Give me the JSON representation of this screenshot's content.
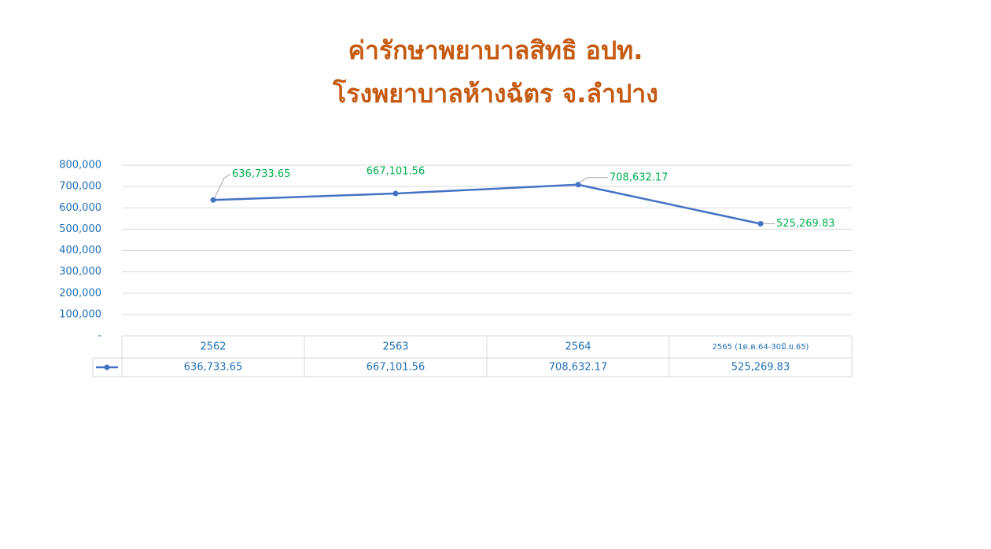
{
  "chart_data": {
    "type": "line",
    "title": [
      "ค่ารักษาพยาบาลสิทธิ อปท.",
      "โรงพยาบาลห้างฉัตร จ.ลำปาง"
    ],
    "categories": [
      "2562",
      "2563",
      "2564",
      "2565 (1ต.ค.64-30มิ.ย.65)"
    ],
    "series": [
      {
        "color": "#4472c4",
        "values": [
          636733.65,
          667101.56,
          708632.17,
          525269.83
        ],
        "value_labels": [
          "636,733.65",
          "667,101.56",
          "708,632.17",
          "525,269.83"
        ]
      }
    ],
    "ylim": [
      0,
      800000
    ],
    "yticks": [
      {
        "value": 0,
        "label": "-"
      },
      {
        "value": 100000,
        "label": "100,000"
      },
      {
        "value": 200000,
        "label": "200,000"
      },
      {
        "value": 300000,
        "label": "300,000"
      },
      {
        "value": 400000,
        "label": "400,000"
      },
      {
        "value": 500000,
        "label": "500,000"
      },
      {
        "value": 600000,
        "label": "600,000"
      },
      {
        "value": 700000,
        "label": "700,000"
      },
      {
        "value": 800000,
        "label": "800,000"
      }
    ],
    "grid": true,
    "data_table": true
  }
}
